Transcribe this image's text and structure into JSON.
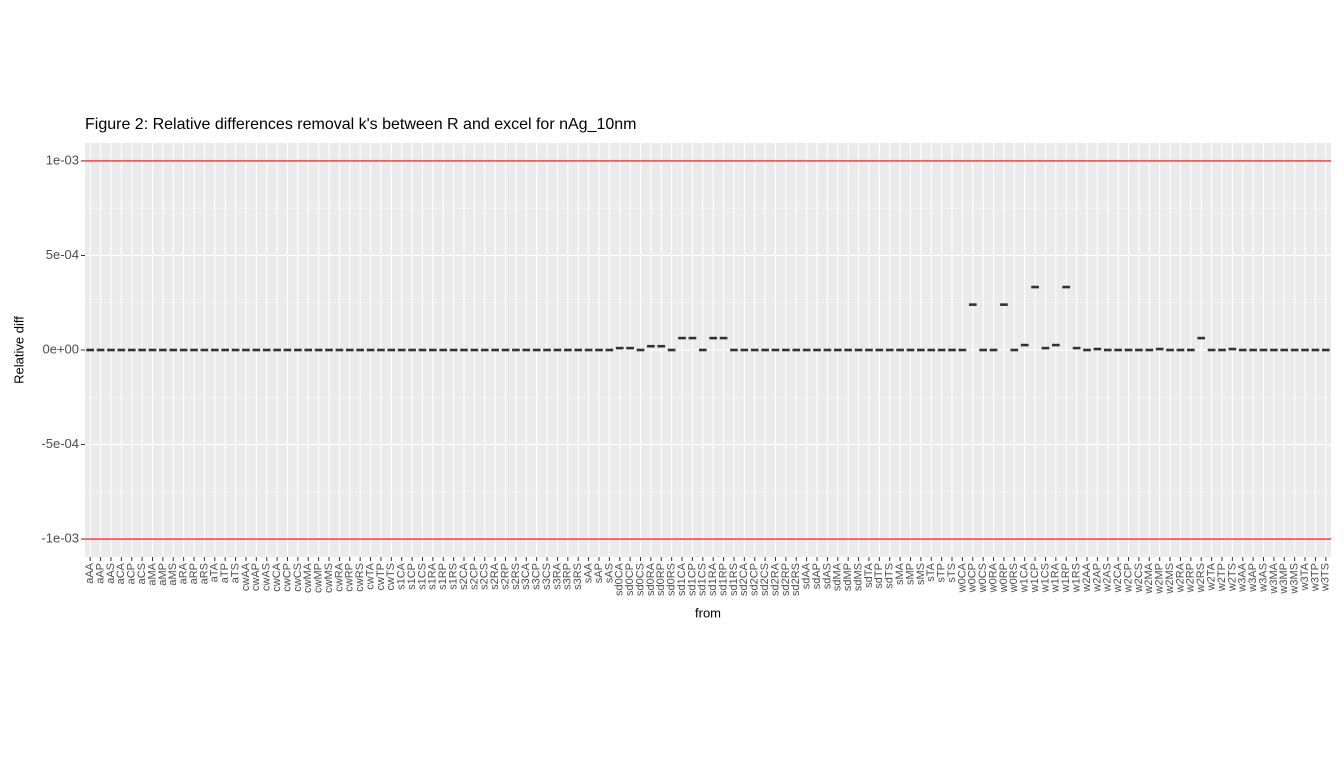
{
  "chart_data": {
    "type": "crossbar",
    "title": "Figure 2: Relative differences removal k's between R and excel for nAg_10nm",
    "xlabel": "from",
    "ylabel": "Relative diff",
    "categories": [
      "aAA",
      "aAP",
      "aAS",
      "aCA",
      "aCP",
      "aCS",
      "aMA",
      "aMP",
      "aMS",
      "aRA",
      "aRP",
      "aRS",
      "aTA",
      "aTP",
      "aTS",
      "cwAA",
      "cwAP",
      "cwAS",
      "cwCA",
      "cwCP",
      "cwCS",
      "cwMA",
      "cwMP",
      "cwMS",
      "cwRA",
      "cwRP",
      "cwRS",
      "cwTA",
      "cwTP",
      "cwTS",
      "s1CA",
      "s1CP",
      "s1CS",
      "s1RA",
      "s1RP",
      "s1RS",
      "s2CA",
      "s2CP",
      "s2CS",
      "s2RA",
      "s2RP",
      "s2RS",
      "s3CA",
      "s3CP",
      "s3CS",
      "s3RA",
      "s3RP",
      "s3RS",
      "sAA",
      "sAP",
      "sAS",
      "sd0CA",
      "sd0CP",
      "sd0CS",
      "sd0RA",
      "sd0RP",
      "sd0RS",
      "sd1CA",
      "sd1CP",
      "sd1CS",
      "sd1RA",
      "sd1RP",
      "sd1RS",
      "sd2CA",
      "sd2CP",
      "sd2CS",
      "sd2RA",
      "sd2RP",
      "sd2RS",
      "sdAA",
      "sdAP",
      "sdAS",
      "sdMA",
      "sdMP",
      "sdMS",
      "sdTA",
      "sdTP",
      "sdTS",
      "sMA",
      "sMP",
      "sMS",
      "sTA",
      "sTP",
      "sTS",
      "w0CA",
      "w0CP",
      "w0CS",
      "w0RA",
      "w0RP",
      "w0RS",
      "w1CA",
      "w1CP",
      "w1CS",
      "w1RA",
      "w1RP",
      "w1RS",
      "w2AA",
      "w2AP",
      "w2AS",
      "w2CA",
      "w2CP",
      "w2CS",
      "w2MA",
      "w2MP",
      "w2MS",
      "w2RA",
      "w2RP",
      "w2RS",
      "w2TA",
      "w2TP",
      "w2TS",
      "w3AA",
      "w3AP",
      "w3AS",
      "w3MA",
      "w3MP",
      "w3MS",
      "w3TA",
      "w3TP",
      "w3TS"
    ],
    "values": [
      0,
      0,
      0,
      0,
      0,
      0,
      0,
      0,
      0,
      0,
      0,
      0,
      0,
      0,
      0,
      0,
      0,
      0,
      0,
      0,
      0,
      0,
      0,
      0,
      0,
      0,
      0,
      0,
      0,
      0,
      0,
      0,
      0,
      0,
      0,
      0,
      0,
      0,
      0,
      0,
      0,
      0,
      0,
      0,
      0,
      0,
      0,
      0,
      0,
      0,
      0,
      1e-05,
      1e-05,
      0,
      2e-05,
      2e-05,
      0,
      6.3e-05,
      6.3e-05,
      0,
      6.3e-05,
      6.3e-05,
      0,
      0,
      0,
      0,
      0,
      0,
      0,
      0,
      0,
      0,
      0,
      0,
      0,
      0,
      0,
      0,
      0,
      0,
      0,
      0,
      0,
      0,
      0,
      0.00024,
      0,
      0,
      0.00024,
      0,
      2.6e-05,
      0.000333,
      1e-05,
      2.6e-05,
      0.000333,
      1e-05,
      0,
      5e-06,
      0,
      0,
      0,
      0,
      0,
      5e-06,
      0,
      0,
      0,
      6.3e-05,
      0,
      0,
      5e-06,
      0,
      0,
      0,
      0,
      0,
      0,
      0,
      0,
      0
    ],
    "color": "#333333",
    "ylim": [
      -0.001095,
      0.001095
    ],
    "yticks": [
      {
        "value": -0.001,
        "label": "-1e-03"
      },
      {
        "value": -0.0005,
        "label": "-5e-04"
      },
      {
        "value": 0,
        "label": "0e+00"
      },
      {
        "value": 0.0005,
        "label": "5e-04"
      },
      {
        "value": 0.001,
        "label": "1e-03"
      }
    ],
    "hlines": [
      0.001,
      -0.001
    ],
    "hline_color": "#ff0000",
    "grid": true
  }
}
